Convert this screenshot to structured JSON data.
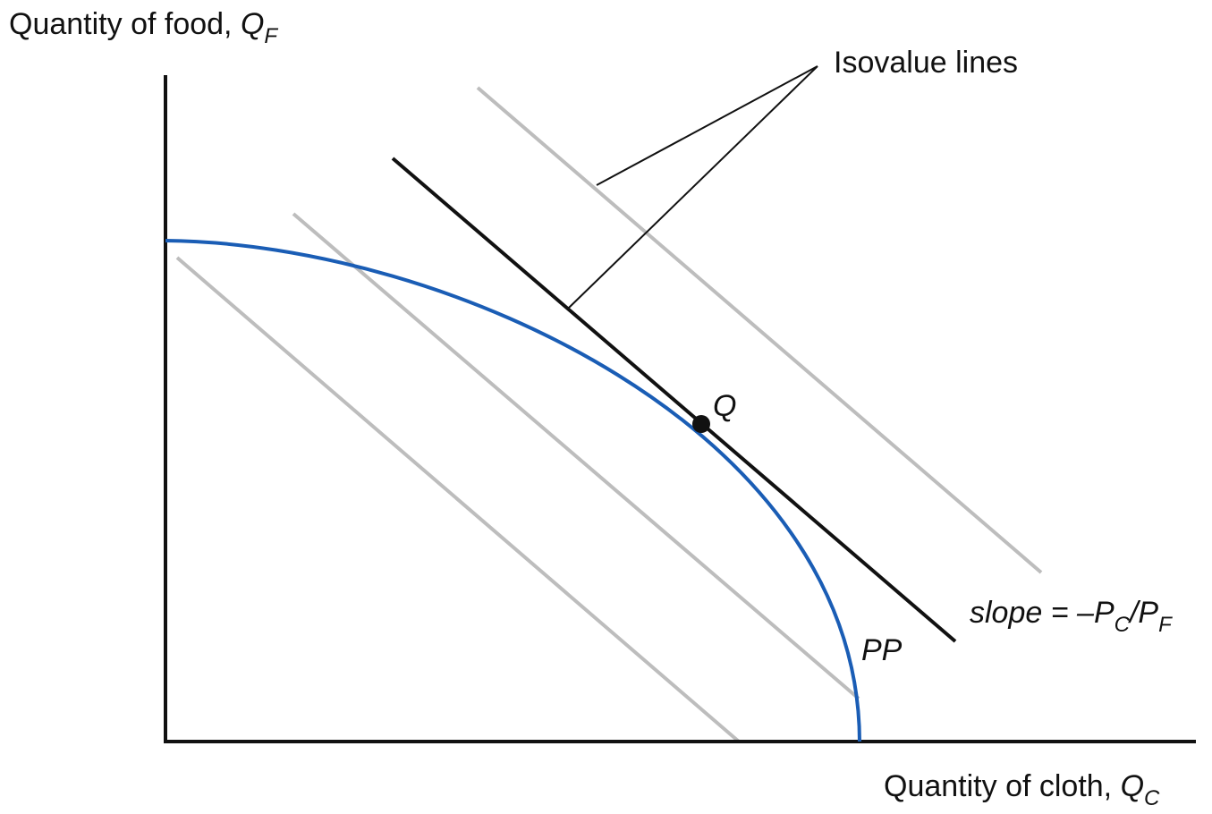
{
  "axes": {
    "y_label": "Quantity of food, ",
    "y_var": "Q",
    "y_sub": "F",
    "x_label": "Quantity of cloth, ",
    "x_var": "Q",
    "x_sub": "C"
  },
  "labels": {
    "isovalue": "Isovalue lines",
    "point": "Q",
    "curve": "PP",
    "slope_prefix": "slope = –P",
    "slope_sub1": "C",
    "slope_mid": "/P",
    "slope_sub2": "F"
  },
  "colors": {
    "curve": "#1a5db5",
    "tangent_line": "#111111",
    "isovalue_lines": "#bdbdbd",
    "axes": "#111111"
  }
}
